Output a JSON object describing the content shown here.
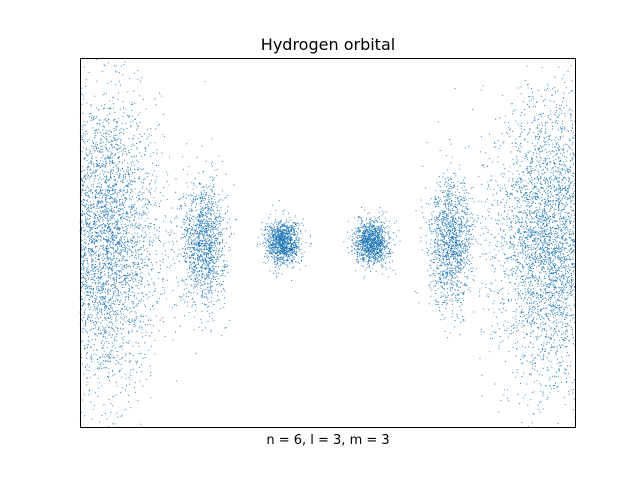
{
  "chart_data": {
    "type": "scatter",
    "title": "Hydrogen orbital",
    "xlabel": "n = 6, l = 3, m = 3",
    "ylabel": "",
    "grid": false,
    "legend": "none",
    "xticks": [],
    "yticks": [],
    "xlim": [
      -1,
      1
    ],
    "ylim": [
      -1,
      1
    ],
    "point_color": "#1f77b4",
    "series": [
      {
        "values_description_note": "",
        "lobes": [
          {
            "x": -0.93,
            "y": 0.0,
            "sx": 0.12,
            "sy": 0.4,
            "n": 2600
          },
          {
            "x": -0.87,
            "y": 0.0,
            "sx": 0.1,
            "sy": 0.36,
            "n": 1400
          },
          {
            "x": -0.5,
            "y": 0.0,
            "sx": 0.045,
            "sy": 0.17,
            "n": 1300
          },
          {
            "x": -0.18,
            "y": 0.0,
            "sx": 0.035,
            "sy": 0.06,
            "n": 1100
          },
          {
            "x": 0.18,
            "y": 0.0,
            "sx": 0.035,
            "sy": 0.06,
            "n": 1100
          },
          {
            "x": 0.5,
            "y": 0.0,
            "sx": 0.045,
            "sy": 0.17,
            "n": 1300
          },
          {
            "x": 0.87,
            "y": 0.0,
            "sx": 0.1,
            "sy": 0.36,
            "n": 1400
          },
          {
            "x": 0.93,
            "y": 0.0,
            "sx": 0.12,
            "sy": 0.4,
            "n": 2600
          }
        ]
      }
    ]
  }
}
